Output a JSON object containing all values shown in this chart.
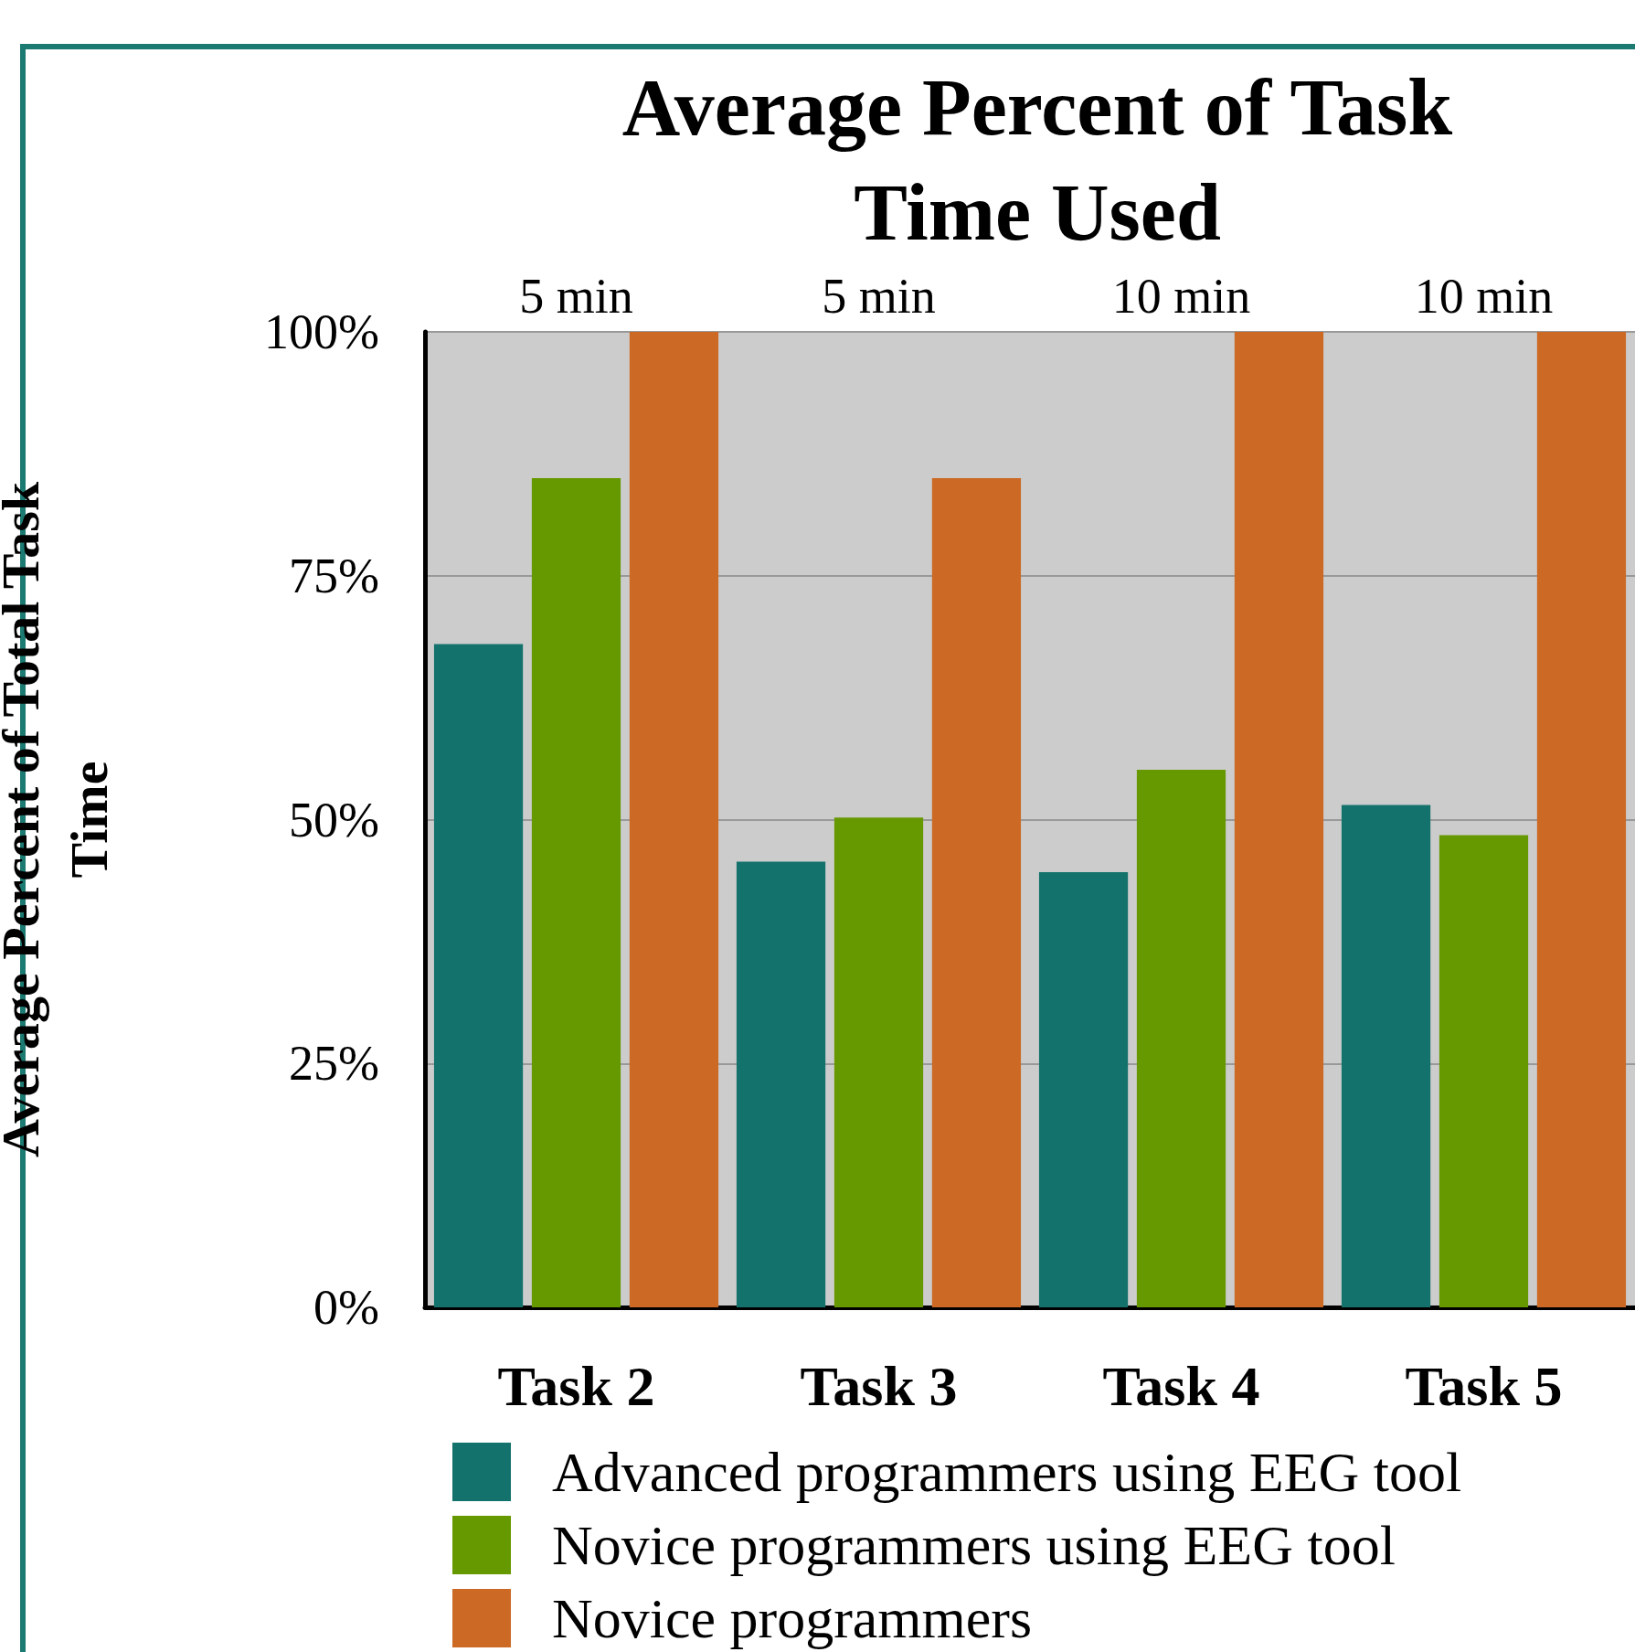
{
  "chart_data": {
    "type": "bar",
    "title": "Average Percent of Task\nTime Used",
    "ylabel": "Average Percent of Total Task\nTime",
    "categories": [
      "Task 2",
      "Task 3",
      "Task 4",
      "Task 5"
    ],
    "series": [
      {
        "name": "Advanced programmers using EEG tool",
        "color": "#13726c",
        "values": [
          68,
          45.7,
          44.6,
          51.5
        ]
      },
      {
        "name": "Novice programmers using EEG tool",
        "color": "#669900",
        "values": [
          85,
          50.2,
          55.1,
          48.4
        ]
      },
      {
        "name": "Novice programmers",
        "color": "#cc6a25",
        "values": [
          100,
          85,
          100,
          100
        ]
      }
    ],
    "annotations": [
      "5 min",
      "5 min",
      "10 min",
      "10 min"
    ],
    "ylim": [
      0,
      100
    ],
    "yticks": [
      {
        "value": 0,
        "label": "0%"
      },
      {
        "value": 25,
        "label": "25%"
      },
      {
        "value": 50,
        "label": "50%"
      },
      {
        "value": 75,
        "label": "75%"
      },
      {
        "value": 100,
        "label": "100%"
      }
    ],
    "grid": "y",
    "legend": "bottom"
  }
}
